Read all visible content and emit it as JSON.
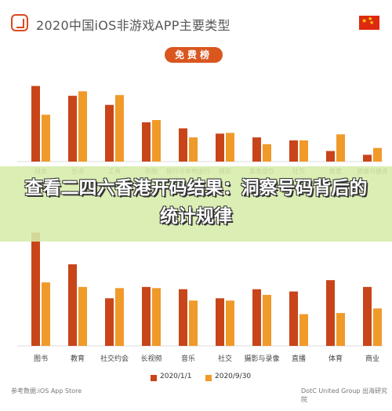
{
  "header": {
    "title": "2020中国iOS非游戏APP主要类型",
    "subtitle": "免费榜"
  },
  "banner": {
    "text": "查看二四六香港开码结果：洞察号码背后的统计规律"
  },
  "legend": {
    "items": [
      "2020/1/1",
      "2020/9/30"
    ]
  },
  "footer": {
    "source": "参考数据:iOS App Store",
    "credit": "DotC United Group 出海研究院"
  },
  "colors": {
    "series1": "#c8451a",
    "series2": "#f09a2a",
    "banner": "#d6ecaa",
    "accent": "#d9561f"
  },
  "chart_data": [
    {
      "type": "bar",
      "categories": [
        "财务",
        "生活",
        "工具",
        "购物",
        "旅行与本地出行",
        "摄影",
        "美食佳饮",
        "社交",
        "教育",
        "健康与健身"
      ],
      "series": [
        {
          "name": "2020/1/1",
          "values": [
            100,
            87,
            75,
            52,
            44,
            37,
            32,
            28,
            14,
            9
          ]
        },
        {
          "name": "2020/9/30",
          "values": [
            62,
            93,
            88,
            55,
            32,
            38,
            23,
            28,
            36,
            18
          ]
        }
      ],
      "ylim": [
        0,
        110
      ]
    },
    {
      "type": "bar",
      "categories": [
        "图书",
        "教育",
        "社交约会",
        "长视频",
        "音乐",
        "社交",
        "摄影与录像",
        "直播",
        "体育",
        "商业"
      ],
      "series": [
        {
          "name": "2020/1/1",
          "values": [
            100,
            72,
            42,
            52,
            50,
            42,
            50,
            48,
            58,
            52
          ]
        },
        {
          "name": "2020/9/30",
          "values": [
            56,
            52,
            51,
            51,
            40,
            40,
            45,
            28,
            29,
            33
          ]
        }
      ],
      "ylim": [
        0,
        110
      ]
    }
  ]
}
